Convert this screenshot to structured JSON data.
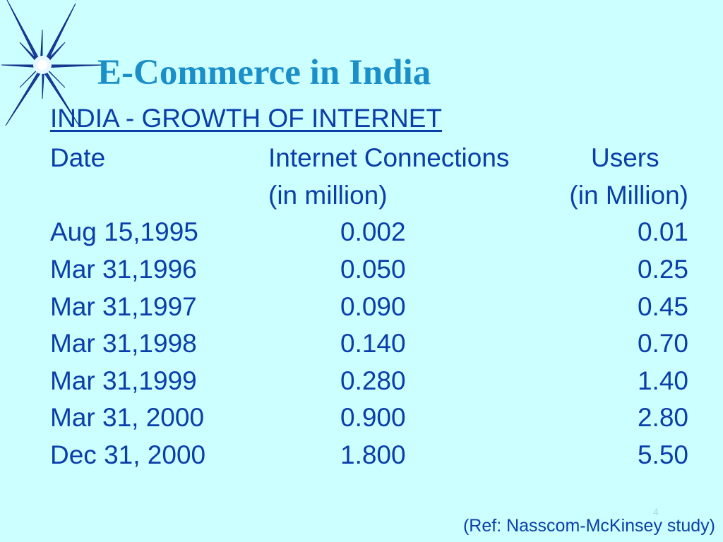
{
  "slide": {
    "title": "E-Commerce in India",
    "subtitle": "INDIA - GROWTH OF INTERNET",
    "header": {
      "date": "Date",
      "connections": "Internet Connections",
      "users": "Users",
      "connections_unit": "(in million)",
      "users_unit": "(in Million)"
    },
    "rows": [
      {
        "date": "Aug 15,1995",
        "connections": "0.002",
        "users": "0.01"
      },
      {
        "date": "Mar  31,1996",
        "connections": "0.050",
        "users": "0.25"
      },
      {
        "date": "Mar  31,1997",
        "connections": "0.090",
        "users": "0.45"
      },
      {
        "date": "Mar  31,1998",
        "connections": "0.140",
        "users": "0.70"
      },
      {
        "date": "Mar  31,1999",
        "connections": "0.280",
        "users": "1.40"
      },
      {
        "date": "Mar  31, 2000",
        "connections": "0.900",
        "users": "2.80"
      },
      {
        "date": "Dec  31, 2000",
        "connections": "1.800",
        "users": "5.50"
      }
    ],
    "reference": "(Ref: Nasscom-McKinsey study)",
    "slide_number": "4",
    "decoration_icon": "star-burst-icon",
    "colors": {
      "background": "#ccffff",
      "title": "#1b8fc9",
      "body_text": "#0a3ea8"
    }
  }
}
